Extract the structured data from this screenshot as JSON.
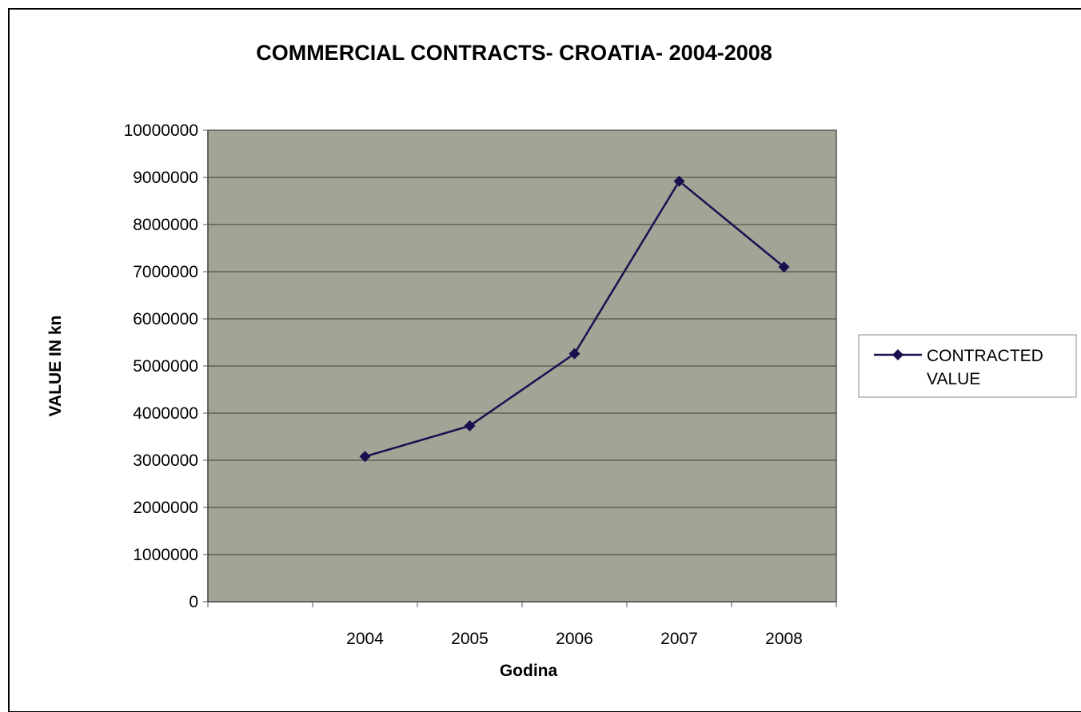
{
  "chart_data": {
    "type": "line",
    "title": "COMMERCIAL CONTRACTS- CROATIA- 2004-2008",
    "xlabel": "Godina",
    "ylabel": "VALUE IN kn",
    "categories": [
      "",
      "2004",
      "2005",
      "2006",
      "2007",
      "2008"
    ],
    "series": [
      {
        "name": "CONTRACTED VALUE",
        "values": [
          null,
          3080000,
          3730000,
          5260000,
          8920000,
          7100000
        ]
      }
    ],
    "ylim": [
      0,
      10000000
    ],
    "yticks": [
      "0",
      "1000000",
      "2000000",
      "3000000",
      "4000000",
      "5000000",
      "6000000",
      "7000000",
      "8000000",
      "9000000",
      "10000000"
    ],
    "grid": true,
    "legend_position": "right",
    "legend_lines": [
      "CONTRACTED",
      "VALUE"
    ],
    "colors": {
      "plot_background": "#a3a396",
      "series_line": "#1a1050",
      "gridline": "#3d3d33"
    }
  }
}
